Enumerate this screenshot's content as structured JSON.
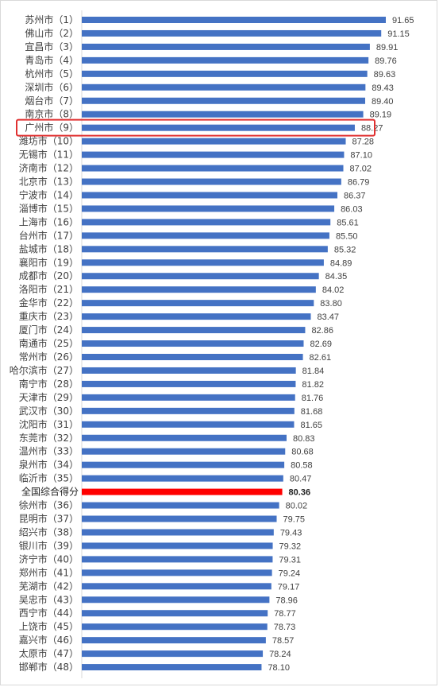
{
  "chart_data": {
    "type": "bar",
    "orientation": "horizontal",
    "title": "",
    "xlabel": "",
    "ylabel": "",
    "xlim": [
      0,
      92
    ],
    "grid": false,
    "legend": "none",
    "bar_color": "#4472C4",
    "highlight_bar_color": "#FF0000",
    "highlight_box_color": "#E03030",
    "boxed_category": "广州市（9）",
    "highlight_category": "全国综合得分",
    "categories": [
      "苏州市（1）",
      "佛山市（2）",
      "宜昌市（3）",
      "青岛市（4）",
      "杭州市（5）",
      "深圳市（6）",
      "烟台市（7）",
      "南京市（8）",
      "广州市（9）",
      "潍坊市（10）",
      "无锡市（11）",
      "济南市（12）",
      "北京市（13）",
      "宁波市（14）",
      "淄博市（15）",
      "上海市（16）",
      "台州市（17）",
      "盐城市（18）",
      "襄阳市（19）",
      "成都市（20）",
      "洛阳市（21）",
      "金华市（22）",
      "重庆市（23）",
      "厦门市（24）",
      "南通市（25）",
      "常州市（26）",
      "哈尔滨市（27）",
      "南宁市（28）",
      "天津市（29）",
      "武汉市（30）",
      "沈阳市（31）",
      "东莞市（32）",
      "温州市（33）",
      "泉州市（34）",
      "临沂市（35）",
      "全国综合得分",
      "徐州市（36）",
      "昆明市（37）",
      "绍兴市（38）",
      "银川市（39）",
      "济宁市（40）",
      "郑州市（41）",
      "芜湖市（42）",
      "吴忠市（43）",
      "西宁市（44）",
      "上饶市（45）",
      "嘉兴市（46）",
      "太原市（47）",
      "邯郸市（48）"
    ],
    "values": [
      91.65,
      91.15,
      89.91,
      89.76,
      89.63,
      89.43,
      89.4,
      89.19,
      88.27,
      87.28,
      87.1,
      87.02,
      86.79,
      86.37,
      86.03,
      85.61,
      85.5,
      85.32,
      84.89,
      84.35,
      84.02,
      83.8,
      83.47,
      82.86,
      82.69,
      82.61,
      81.84,
      81.82,
      81.76,
      81.68,
      81.65,
      80.83,
      80.68,
      80.58,
      80.47,
      80.36,
      80.02,
      79.75,
      79.43,
      79.32,
      79.31,
      79.24,
      79.17,
      78.96,
      78.77,
      78.73,
      78.57,
      78.24,
      78.1
    ]
  }
}
